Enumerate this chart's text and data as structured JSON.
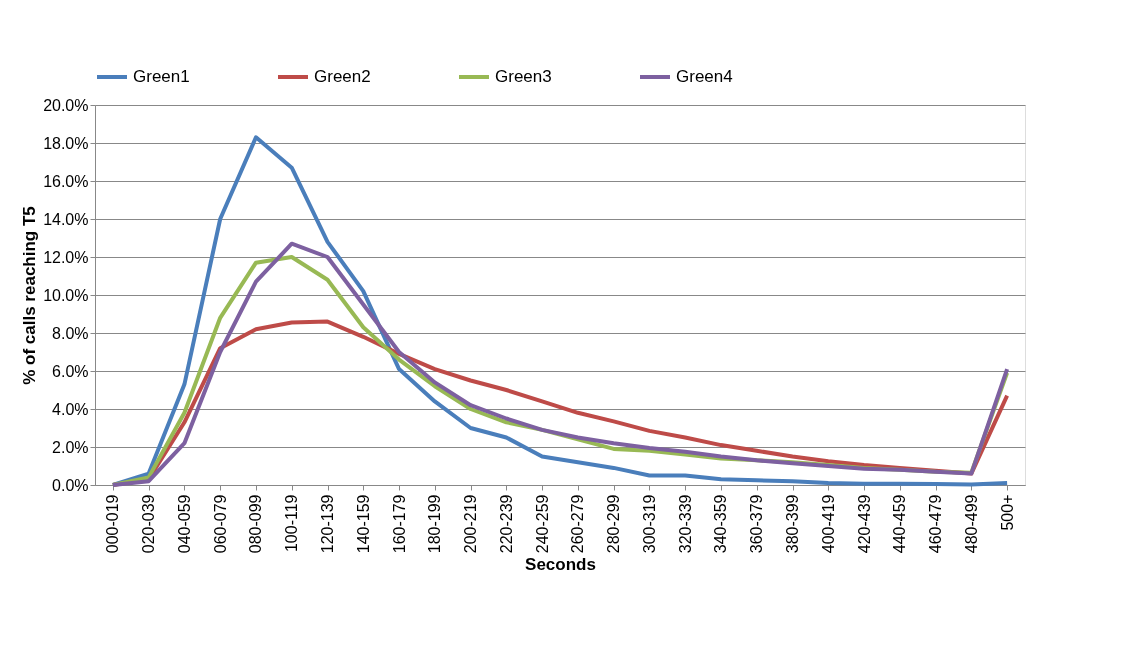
{
  "chart_data": {
    "type": "line",
    "xlabel": "Seconds",
    "ylabel": "% of calls reaching T5",
    "categories": [
      "000-019",
      "020-039",
      "040-059",
      "060-079",
      "080-099",
      "100-119",
      "120-139",
      "140-159",
      "160-179",
      "180-199",
      "200-219",
      "220-239",
      "240-259",
      "260-279",
      "280-299",
      "300-319",
      "320-339",
      "340-359",
      "360-379",
      "380-399",
      "400-419",
      "420-439",
      "440-459",
      "460-479",
      "480-499",
      "500+"
    ],
    "series": [
      {
        "name": "Green1",
        "color": "#4a7ebb",
        "values": [
          0,
          0.6,
          5.3,
          14.0,
          18.3,
          16.7,
          12.8,
          10.2,
          6.1,
          4.4,
          3.0,
          2.5,
          1.5,
          1.2,
          0.9,
          0.5,
          0.5,
          0.3,
          0.25,
          0.2,
          0.1,
          0.07,
          0.06,
          0.05,
          0.03,
          0.1
        ]
      },
      {
        "name": "Green2",
        "color": "#be4b48",
        "values": [
          0,
          0.3,
          3.3,
          7.2,
          8.2,
          8.55,
          8.6,
          7.8,
          6.9,
          6.1,
          5.5,
          5.0,
          4.4,
          3.8,
          3.35,
          2.85,
          2.5,
          2.1,
          1.8,
          1.5,
          1.25,
          1.05,
          0.9,
          0.75,
          0.6,
          4.7
        ]
      },
      {
        "name": "Green3",
        "color": "#98b954",
        "values": [
          0,
          0.4,
          3.8,
          8.8,
          11.7,
          12.0,
          10.8,
          8.3,
          6.6,
          5.2,
          4.0,
          3.3,
          2.9,
          2.4,
          1.9,
          1.8,
          1.6,
          1.4,
          1.3,
          1.2,
          1.05,
          0.9,
          0.8,
          0.7,
          0.65,
          5.9
        ]
      },
      {
        "name": "Green4",
        "color": "#7d60a0",
        "values": [
          0,
          0.2,
          2.2,
          7.0,
          10.7,
          12.7,
          12.0,
          9.5,
          7.0,
          5.4,
          4.2,
          3.5,
          2.9,
          2.5,
          2.2,
          1.95,
          1.75,
          1.5,
          1.3,
          1.15,
          1.0,
          0.85,
          0.8,
          0.7,
          0.6,
          6.1
        ]
      }
    ],
    "ylim": [
      0,
      20
    ],
    "yticks": [
      {
        "value": 0,
        "label": "0.0%"
      },
      {
        "value": 2,
        "label": "2.0%"
      },
      {
        "value": 4,
        "label": "4.0%"
      },
      {
        "value": 6,
        "label": "6.0%"
      },
      {
        "value": 8,
        "label": "8.0%"
      },
      {
        "value": 10,
        "label": "10.0%"
      },
      {
        "value": 12,
        "label": "12.0%"
      },
      {
        "value": 14,
        "label": "14.0%"
      },
      {
        "value": 16,
        "label": "16.0%"
      },
      {
        "value": 18,
        "label": "18.0%"
      },
      {
        "value": 20,
        "label": "20.0%"
      }
    ],
    "grid": "y",
    "legend": "top",
    "marker": "none",
    "line_style": "solid"
  }
}
